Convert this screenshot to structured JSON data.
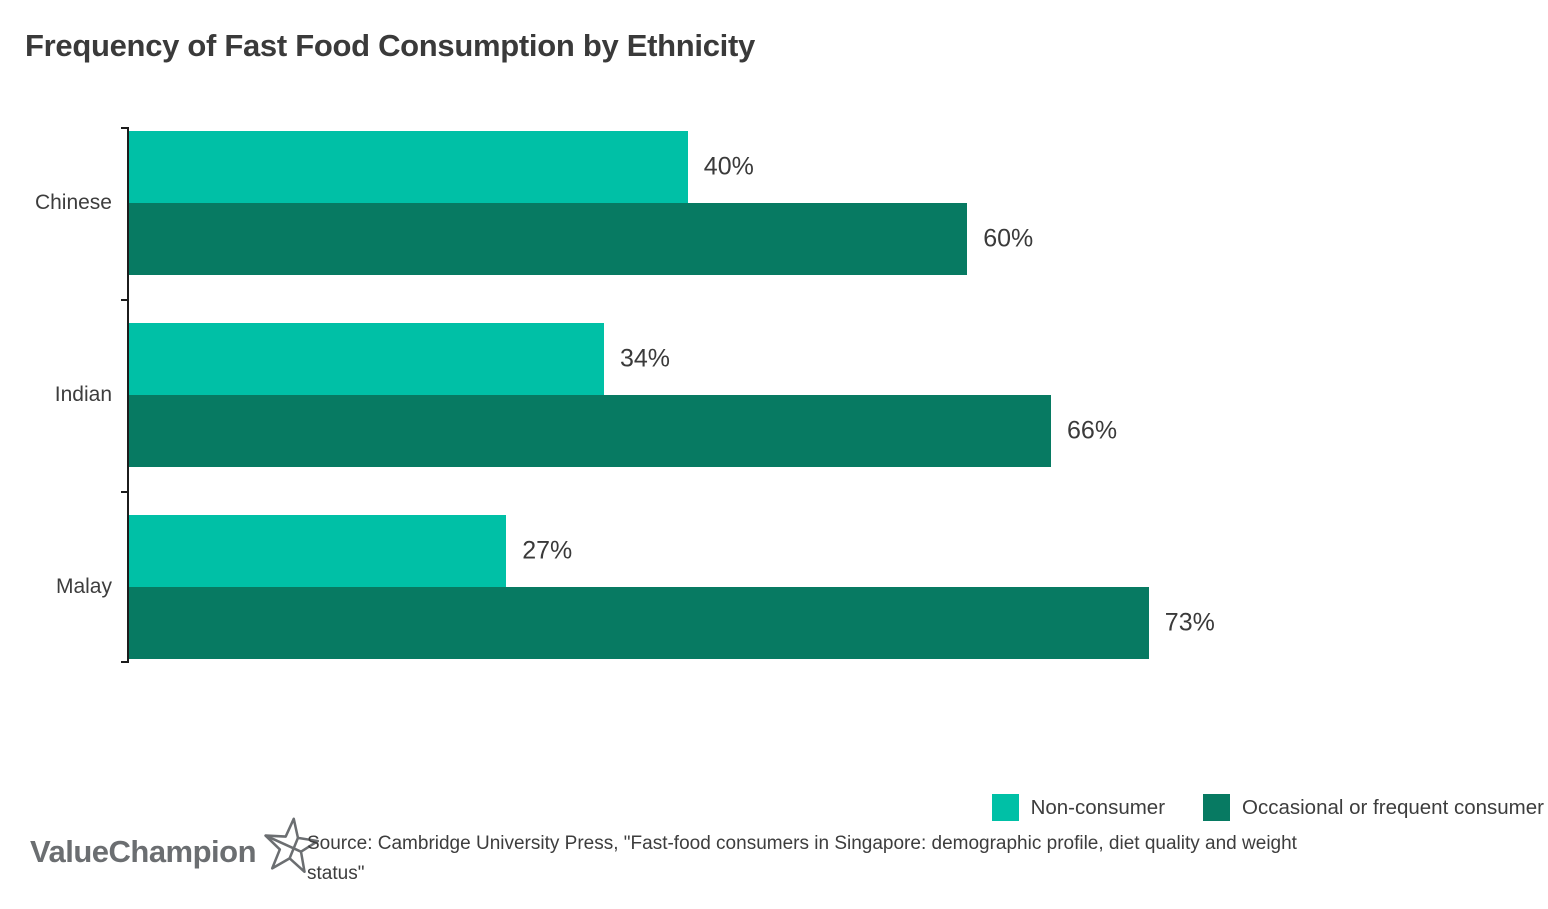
{
  "title": "Frequency of Fast Food Consumption by Ethnicity",
  "chart_data": {
    "type": "bar",
    "orientation": "horizontal",
    "title": "Frequency of Fast Food Consumption by Ethnicity",
    "categories": [
      "Chinese",
      "Indian",
      "Malay"
    ],
    "series": [
      {
        "name": "Non-consumer",
        "color": "#00c0a6",
        "values": [
          40,
          34,
          27
        ]
      },
      {
        "name": "Occasional or frequent consumer",
        "color": "#077a62",
        "values": [
          60,
          66,
          73
        ]
      }
    ],
    "value_suffix": "%",
    "xlim": [
      0,
      100
    ],
    "grid": false,
    "legend_position": "bottom-right",
    "axis_color": "#1c1c1c",
    "label_color": "#3a3a3a"
  },
  "footer": {
    "logo_text": "ValueChampion",
    "source_lines": [
      "Source: Cambridge University Press, \"Fast-food consumers in Singapore: demographic profile, diet quality and weight",
      "status\""
    ]
  }
}
